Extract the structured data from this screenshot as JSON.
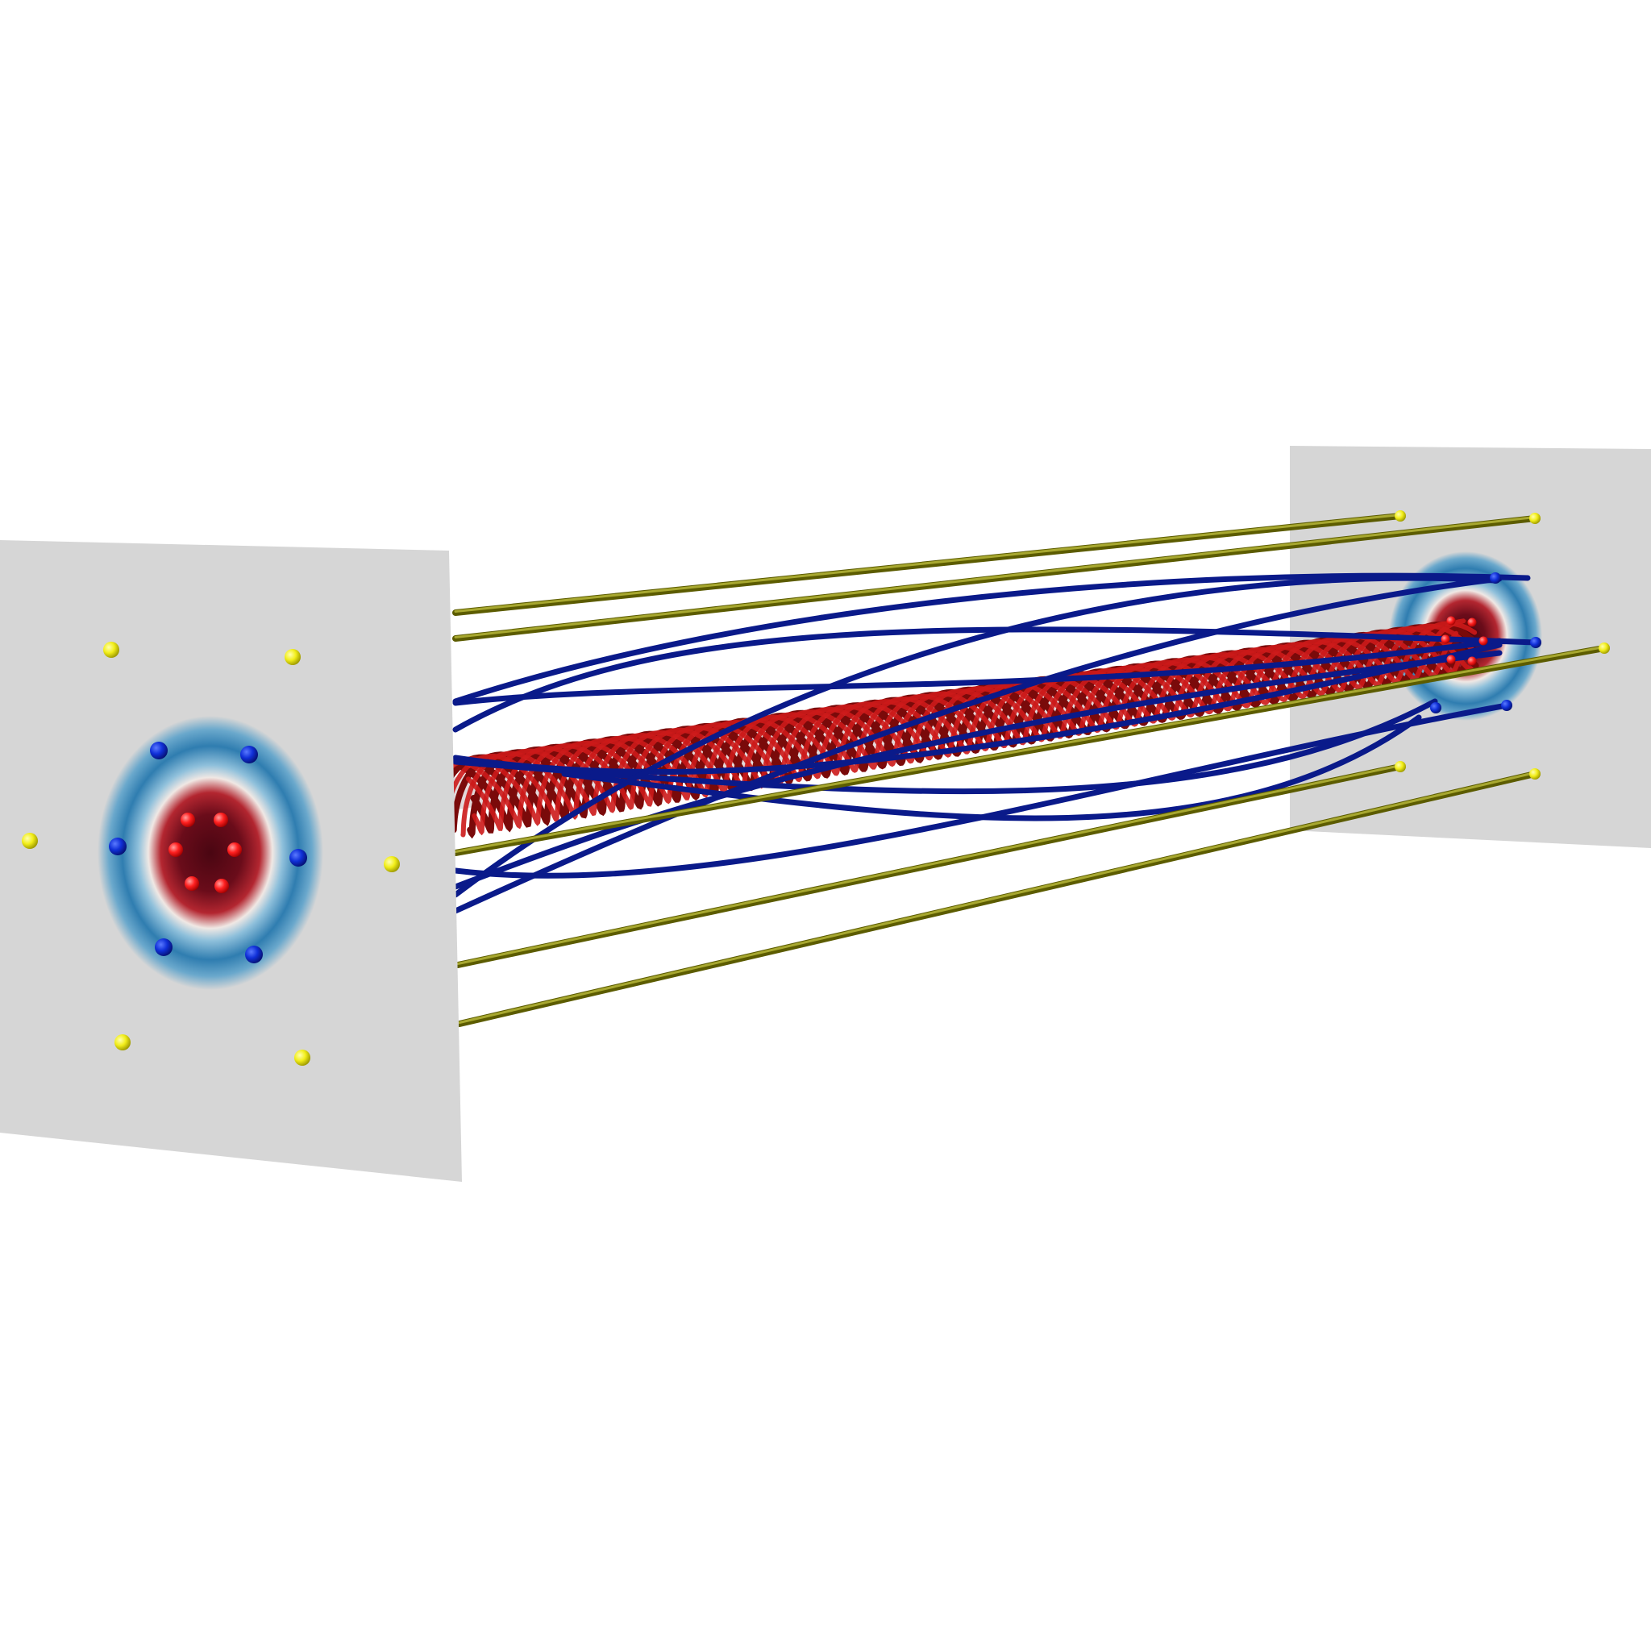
{
  "scene": {
    "background": "#ffffff",
    "plane_color": "#d6d6d6",
    "colors": {
      "core_dark": "#5a0a18",
      "core_red": "#b0202a",
      "ring_blue": "#2f7fb0",
      "ring_light": "#c8e0ec",
      "helix_red": "#cc1a1a",
      "helix_dark": "#7a0a0a",
      "blue_line": "#0a1a8a",
      "blue_dot": "#1030d8",
      "red_dot": "#ff2020",
      "olive_line": "#7a7a0a",
      "yellow_dot": "#f2ee1a"
    }
  }
}
